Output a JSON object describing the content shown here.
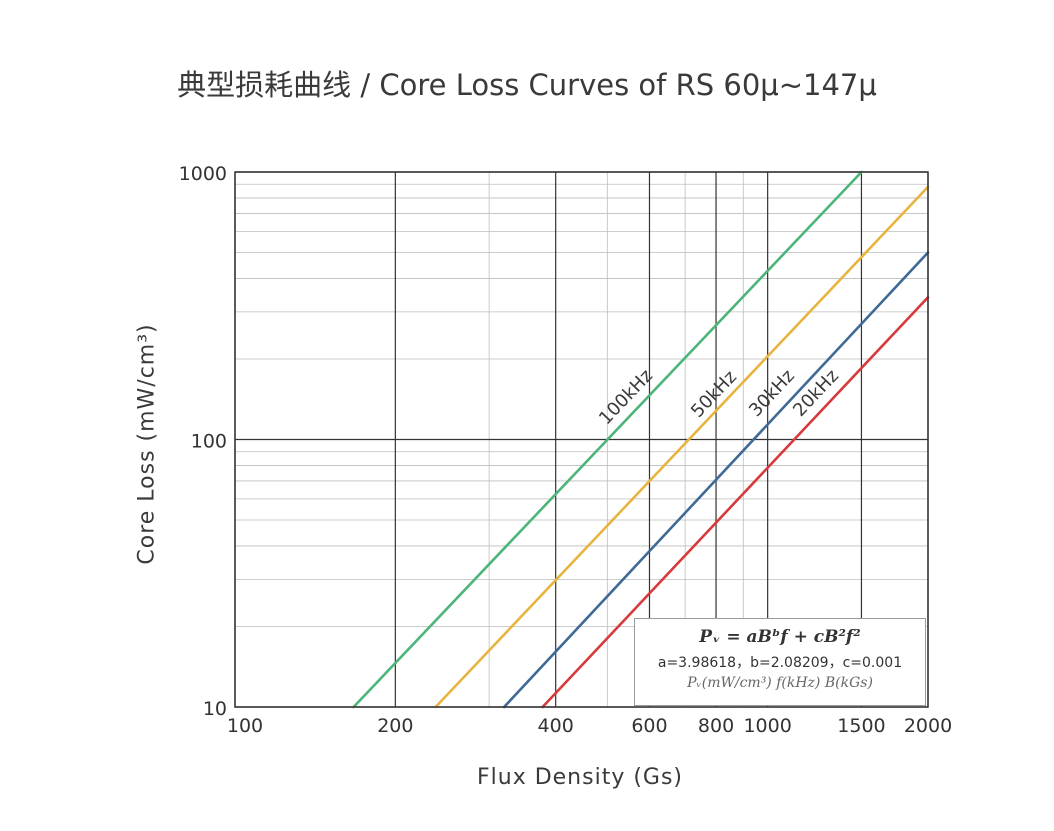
{
  "title": "典型损耗曲线 / Core Loss Curves of RS 60μ~147μ",
  "formula": {
    "main": "Pᵥ = aBᵇf + cB²f²",
    "coefficients": "a=3.98618，b=2.08209，c=0.001",
    "units": "Pᵥ(mW/cm³) f(kHz) B(kGs)",
    "a": "3.98618",
    "b": "2.08209",
    "c": "0.001"
  },
  "chart_data": {
    "type": "line",
    "title": "典型损耗曲线 / Core Loss Curves of RS 60μ~147μ",
    "xlabel": "Flux Density (Gs)",
    "ylabel": "Core Loss (mW/cm³)",
    "x_scale": "log",
    "y_scale": "log",
    "xlim": [
      100,
      2000
    ],
    "ylim": [
      10,
      1000
    ],
    "x_ticks": [
      100,
      200,
      400,
      600,
      800,
      1000,
      1500,
      2000
    ],
    "x_tick_labels": [
      "100",
      "200",
      "400",
      "600",
      "800",
      "1000",
      "1500",
      "2000"
    ],
    "y_ticks": [
      10,
      100,
      1000
    ],
    "y_tick_labels": [
      "10",
      "100",
      "1000"
    ],
    "grid": true,
    "legend": "inline labels",
    "series": [
      {
        "name": "100kHz",
        "color": "#4db47a",
        "x": [
          167,
          1500
        ],
        "y": [
          10,
          1000
        ]
      },
      {
        "name": "50kHz",
        "color": "#e8b440",
        "x": [
          238,
          2000
        ],
        "y": [
          10,
          880
        ]
      },
      {
        "name": "30kHz",
        "color": "#3f6a96",
        "x": [
          320,
          2000
        ],
        "y": [
          10,
          500
        ]
      },
      {
        "name": "20kHz",
        "color": "#d63a3a",
        "x": [
          378,
          2000
        ],
        "y": [
          10,
          340
        ]
      }
    ]
  }
}
